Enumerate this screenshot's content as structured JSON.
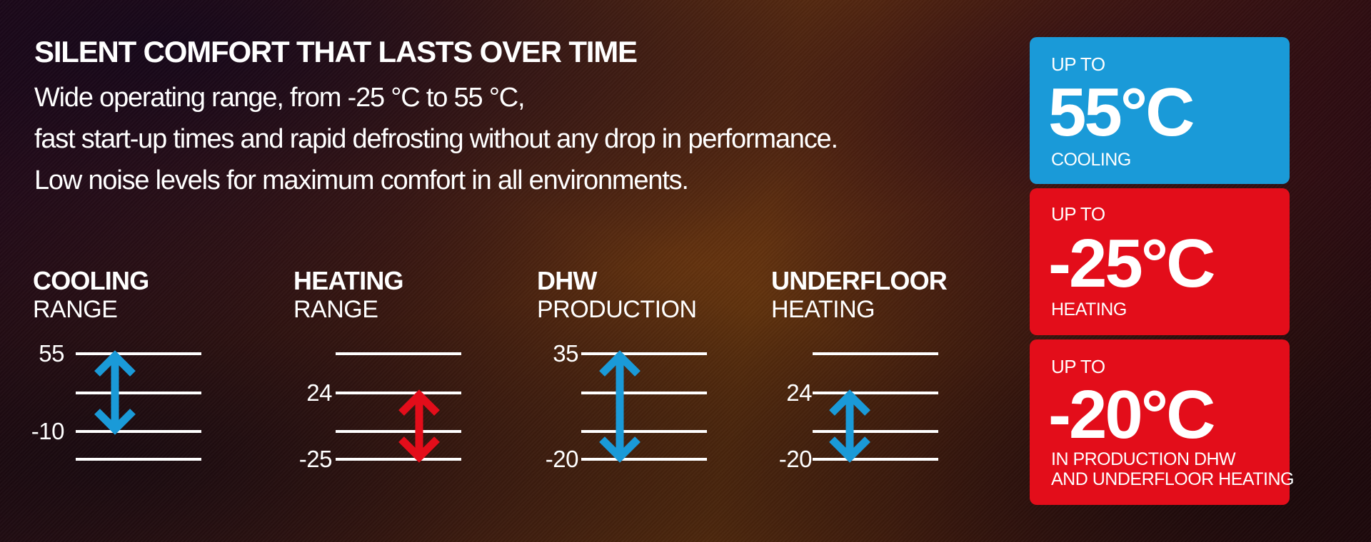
{
  "headline": "SILENT COMFORT THAT LASTS OVER TIME",
  "intro_lines": [
    "Wide operating range, from -25 °C to 55 °C,",
    "fast start-up times and rapid defrosting without any drop in performance.",
    "Low noise levels for maximum comfort in all environments."
  ],
  "gauges": [
    {
      "title": "COOLING",
      "subtitle": "RANGE",
      "color": "#1a9ad8",
      "labels": [
        "55",
        "-10"
      ]
    },
    {
      "title": "HEATING",
      "subtitle": "RANGE",
      "color": "#e30d1a",
      "labels": [
        "24",
        "-25"
      ]
    },
    {
      "title": "DHW",
      "subtitle": "PRODUCTION",
      "color": "#1a9ad8",
      "labels": [
        "35",
        "-20"
      ]
    },
    {
      "title": "UNDERFLOOR",
      "subtitle": "HEATING",
      "color": "#1a9ad8",
      "labels": [
        "24",
        "-20"
      ]
    }
  ],
  "cards": [
    {
      "prefix": "UP TO",
      "value": "55°C",
      "caption_lines": [
        "COOLING"
      ],
      "color": "#1a9ad8"
    },
    {
      "prefix": "UP TO",
      "value": "-25°C",
      "caption_lines": [
        "HEATING"
      ],
      "color": "#e30d1a"
    },
    {
      "prefix": "UP TO",
      "value": "-20°C",
      "caption_lines": [
        "IN PRODUCTION DHW",
        "AND UNDERFLOOR HEATING"
      ],
      "color": "#e30d1a"
    }
  ],
  "colors": {
    "cooling": "#1a9ad8",
    "heating": "#e30d1a",
    "lines": "#ffffff"
  }
}
